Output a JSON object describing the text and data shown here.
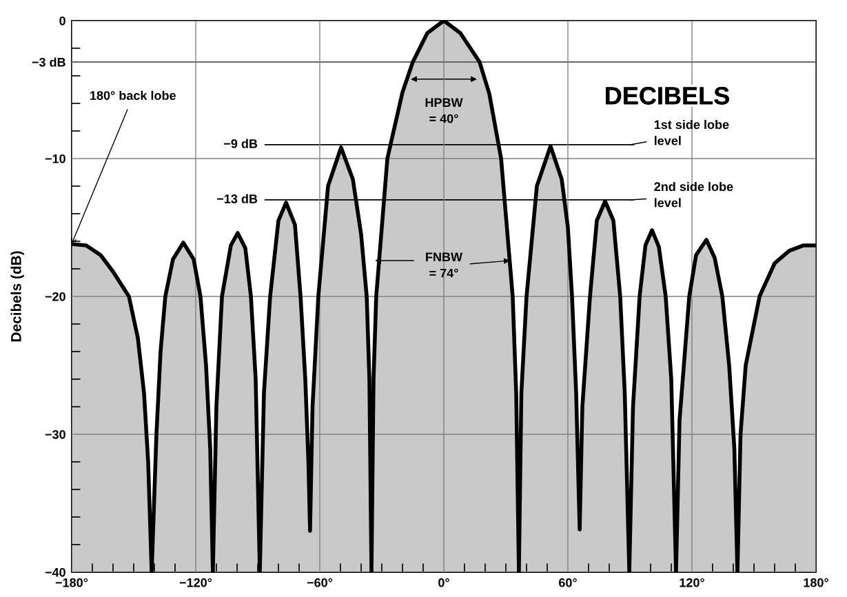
{
  "chart_data": {
    "type": "area",
    "ylabel": "Decibels (dB)",
    "x": [
      -180,
      -173,
      -166,
      -160,
      -152.3,
      -148,
      -145,
      -143,
      -141.3,
      -139,
      -137,
      -134.7,
      -131,
      -126,
      -121,
      -117.7,
      -115,
      -113,
      -111.7,
      -110,
      -107.3,
      -103,
      -99.7,
      -96,
      -93.3,
      -91,
      -89,
      -87,
      -84,
      -80,
      -76.3,
      -72,
      -69.3,
      -67,
      -65.5,
      -64.7,
      -63.5,
      -60.7,
      -56,
      -49.7,
      -44,
      -40,
      -37.3,
      -36,
      -35,
      -34,
      -32.7,
      -27.3,
      -20,
      -15,
      -8,
      0,
      8,
      17.3,
      22,
      27.7,
      33.3,
      35,
      36.3,
      37.5,
      40,
      45,
      51.6,
      57,
      60,
      62,
      64,
      65.7,
      67,
      70.7,
      74,
      78,
      82,
      85.3,
      87.5,
      89.7,
      91.5,
      94.7,
      97.5,
      100.7,
      104,
      107.3,
      110,
      112.3,
      114,
      118.7,
      122,
      127,
      131,
      134.7,
      138,
      140.5,
      142,
      143.5,
      146,
      152.7,
      160,
      167,
      174,
      180
    ],
    "series": [
      {
        "color": "#c9c9c9",
        "values": [
          -16.2,
          -16.3,
          -17,
          -18.2,
          -20,
          -23,
          -27,
          -32,
          -40,
          -30,
          -24,
          -20,
          -17.3,
          -16.1,
          -17.3,
          -20,
          -25,
          -31,
          -40,
          -28,
          -20,
          -16.3,
          -15.4,
          -16.5,
          -20,
          -26,
          -40,
          -27,
          -20,
          -14.5,
          -13.2,
          -14.8,
          -20,
          -26,
          -32,
          -37,
          -28,
          -20,
          -12,
          -9.2,
          -11.5,
          -15.5,
          -20,
          -26,
          -40,
          -26,
          -20,
          -10,
          -5.2,
          -3,
          -0.9,
          0,
          -0.9,
          -3,
          -5.3,
          -10,
          -20,
          -27,
          -40,
          -27,
          -20,
          -12,
          -9.1,
          -11.5,
          -15,
          -20,
          -27,
          -36.9,
          -28,
          -20,
          -14.5,
          -13.1,
          -14.5,
          -20,
          -27,
          -40,
          -28,
          -20,
          -16.3,
          -15.2,
          -16.4,
          -20,
          -26,
          -40,
          -29,
          -20,
          -17,
          -15.9,
          -17.2,
          -20,
          -25,
          -31,
          -40,
          -30,
          -25,
          -20,
          -17.6,
          -16.7,
          -16.3,
          -16.3
        ]
      }
    ],
    "xlim": [
      -180,
      180
    ],
    "xticks": [
      {
        "value": -180,
        "label": "−180°"
      },
      {
        "value": -120,
        "label": "−120°"
      },
      {
        "value": -60,
        "label": "−60°"
      },
      {
        "value": 0,
        "label": "0°"
      },
      {
        "value": 60,
        "label": "60°"
      },
      {
        "value": 120,
        "label": "120°"
      },
      {
        "value": 180,
        "label": "180°"
      }
    ],
    "ylim": [
      -40,
      0
    ],
    "yticks": [
      0,
      {
        "value": -3,
        "label": "−3 dB"
      },
      {
        "value": -10,
        "label": "−10"
      },
      {
        "value": -20,
        "label": "−20"
      },
      {
        "value": -30,
        "label": "−30"
      },
      {
        "value": -40,
        "label": "−40"
      }
    ],
    "grid": true,
    "ref_lines": [
      {
        "axis": "y",
        "value": -3,
        "color": "#000000"
      },
      {
        "axis": "y",
        "value": -9,
        "label": "−9 dB",
        "color": "#000000"
      },
      {
        "axis": "y",
        "value": -13,
        "label": "−13 dB",
        "color": "#000000"
      }
    ],
    "annotations": [
      {
        "text": "180° back lobe",
        "x": -180,
        "y": -16.2
      },
      "HPBW\n= 40°",
      {
        "text": "FNBW\n= 74°",
        "x": 32,
        "y": -17.4
      },
      {
        "text": "1st side lobe\nlevel",
        "x": 90,
        "y": -9
      },
      {
        "text": "2nd side lobe\nlevel",
        "x": 90,
        "y": -13
      },
      "DECIBELS"
    ]
  }
}
